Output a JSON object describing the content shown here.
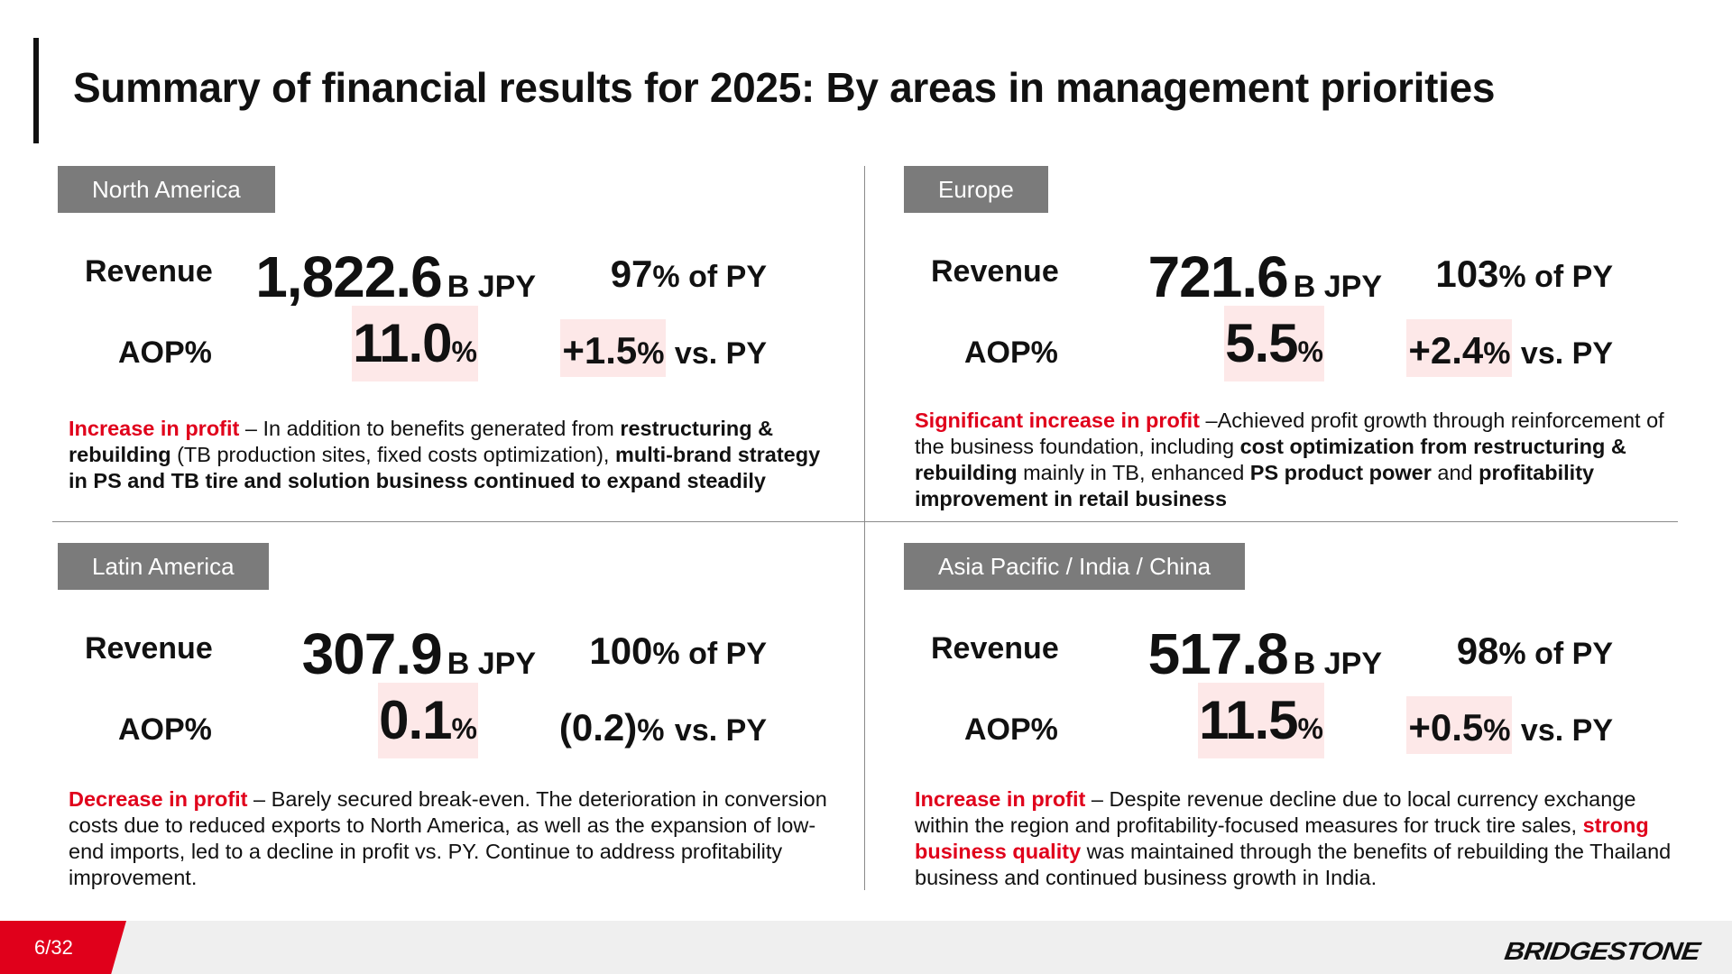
{
  "title": "Summary of financial results for 2025: By areas in management priorities",
  "labels": {
    "revenue": "Revenue",
    "aop": "AOP%"
  },
  "regions": {
    "north_america": {
      "name": "North America",
      "revenue_value": "1,822.6",
      "revenue_unit": "B JPY",
      "py_value": "97",
      "py_unit": "% of PY",
      "aop_value": "11.0",
      "aop_unit": "%",
      "vs_value": "+1.5",
      "vs_unit": "% vs. PY",
      "desc": [
        {
          "t": "Increase in profit",
          "s": "red"
        },
        {
          "t": " – In addition to benefits generated from ",
          "s": ""
        },
        {
          "t": "restructuring & rebuilding",
          "s": "b"
        },
        {
          "t": " (TB production sites, fixed costs optimization), ",
          "s": ""
        },
        {
          "t": "multi-brand strategy in PS and TB tire and solution business continued to expand steadily",
          "s": "b"
        }
      ]
    },
    "europe": {
      "name": "Europe",
      "revenue_value": "721.6",
      "revenue_unit": "B JPY",
      "py_value": "103",
      "py_unit": "% of PY",
      "aop_value": "5.5",
      "aop_unit": "%",
      "vs_value": "+2.4",
      "vs_unit": "% vs. PY",
      "desc": [
        {
          "t": "Significant increase in profit",
          "s": "red"
        },
        {
          "t": " –Achieved profit growth through reinforcement of the business foundation, including ",
          "s": ""
        },
        {
          "t": "cost optimization from restructuring & rebuilding",
          "s": "b"
        },
        {
          "t": " mainly in TB, enhanced ",
          "s": ""
        },
        {
          "t": "PS product power",
          "s": "b"
        },
        {
          "t": " and ",
          "s": ""
        },
        {
          "t": "profitability improvement in retail business",
          "s": "b"
        }
      ]
    },
    "latin_america": {
      "name": "Latin America",
      "revenue_value": "307.9",
      "revenue_unit": "B JPY",
      "py_value": "100",
      "py_unit": "% of PY",
      "aop_value": "0.1",
      "aop_unit": "%",
      "vs_value": "(0.2)",
      "vs_unit": "% vs. PY",
      "desc": [
        {
          "t": "Decrease in profit",
          "s": "red"
        },
        {
          "t": " – Barely secured break-even. The deterioration in conversion costs due to reduced exports to North America, as well as the expansion of low-end imports, led to a decline in profit vs. PY. Continue to address profitability improvement.",
          "s": ""
        }
      ]
    },
    "asia_pacific": {
      "name": "Asia Pacific / India / China",
      "revenue_value": "517.8",
      "revenue_unit": "B JPY",
      "py_value": "98",
      "py_unit": "% of PY",
      "aop_value": "11.5",
      "aop_unit": "%",
      "vs_value": "+0.5",
      "vs_unit": "% vs. PY",
      "desc": [
        {
          "t": "Increase in profit",
          "s": "red"
        },
        {
          "t": " – Despite revenue decline due to local currency exchange within the region and profitability-focused measures for truck tire sales, ",
          "s": ""
        },
        {
          "t": "strong business quality",
          "s": "red"
        },
        {
          "t": " was maintained through the benefits of rebuilding the Thailand business and continued business growth in India.",
          "s": ""
        }
      ]
    }
  },
  "footer": {
    "page": "6/32",
    "logo": "BRIDGESTONE"
  },
  "colors": {
    "accent": "#e0001b",
    "tag": "#7b7b7b",
    "highlight": "#fde8e8"
  }
}
